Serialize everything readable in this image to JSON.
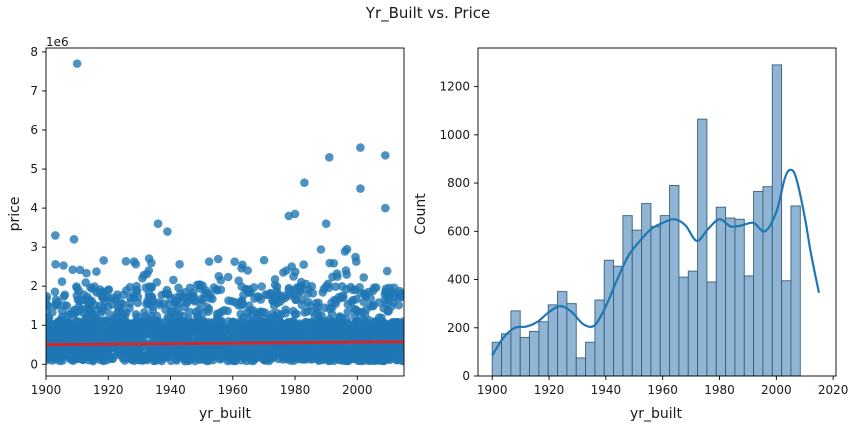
{
  "figure": {
    "suptitle": "Yr_Built vs. Price"
  },
  "chart_data": [
    {
      "type": "scatter",
      "title": "",
      "xlabel": "yr_built",
      "ylabel": "price",
      "offset_label": "1e6",
      "xlim": [
        1900,
        2015
      ],
      "ylim": [
        -0.3,
        8.1
      ],
      "xticks": [
        1900,
        1920,
        1940,
        1960,
        1980,
        2000
      ],
      "yticks": [
        0,
        1,
        2,
        3,
        4,
        5,
        6,
        7,
        8
      ],
      "point_color": "#1f77b4",
      "notable_points": [
        {
          "x": 1910,
          "y": 7.7
        },
        {
          "x": 1936,
          "y": 3.6
        },
        {
          "x": 1939,
          "y": 3.4
        },
        {
          "x": 1978,
          "y": 3.8
        },
        {
          "x": 1980,
          "y": 3.85
        },
        {
          "x": 1983,
          "y": 4.65
        },
        {
          "x": 1991,
          "y": 5.3
        },
        {
          "x": 2001,
          "y": 5.55
        },
        {
          "x": 2001,
          "y": 4.5
        },
        {
          "x": 2009,
          "y": 5.35
        },
        {
          "x": 2009,
          "y": 4.0
        },
        {
          "x": 1990,
          "y": 3.6
        },
        {
          "x": 1903,
          "y": 3.3
        },
        {
          "x": 1909,
          "y": 3.2
        }
      ],
      "bulk_band": {
        "low": 0.08,
        "high": 2.0,
        "upper_tail": 3.2
      },
      "regression": {
        "color": "#d62728",
        "x": [
          1900,
          2015
        ],
        "y": [
          0.5,
          0.58
        ]
      }
    },
    {
      "type": "histogram",
      "title": "",
      "xlabel": "yr_built",
      "ylabel": "Count",
      "xlim": [
        1895,
        2021
      ],
      "ylim": [
        0,
        1360
      ],
      "xticks": [
        1900,
        1920,
        1940,
        1960,
        1980,
        2000,
        2020
      ],
      "yticks": [
        0,
        200,
        400,
        600,
        800,
        1000,
        1200
      ],
      "bar_color": "#7ba7cc",
      "edge_color": "#3b5f7d",
      "kde_color": "#1f77b4",
      "bin_start": 1900,
      "bin_width": 3.2857,
      "counts": [
        140,
        175,
        270,
        160,
        185,
        225,
        295,
        350,
        300,
        75,
        140,
        315,
        480,
        455,
        665,
        605,
        715,
        620,
        665,
        790,
        410,
        435,
        1065,
        390,
        700,
        655,
        650,
        415,
        765,
        785,
        1290,
        395,
        705
      ],
      "kde": {
        "x": [
          1900,
          1904,
          1908,
          1912,
          1916,
          1920,
          1924,
          1928,
          1932,
          1936,
          1940,
          1944,
          1948,
          1952,
          1956,
          1960,
          1964,
          1968,
          1972,
          1976,
          1980,
          1984,
          1988,
          1992,
          1996,
          2000,
          2003,
          2005,
          2007,
          2010,
          2012,
          2015
        ],
        "y": [
          85,
          160,
          200,
          205,
          225,
          265,
          290,
          265,
          215,
          210,
          290,
          400,
          500,
          560,
          610,
          635,
          650,
          625,
          560,
          610,
          650,
          620,
          625,
          635,
          600,
          680,
          820,
          855,
          820,
          660,
          520,
          345
        ]
      }
    }
  ]
}
